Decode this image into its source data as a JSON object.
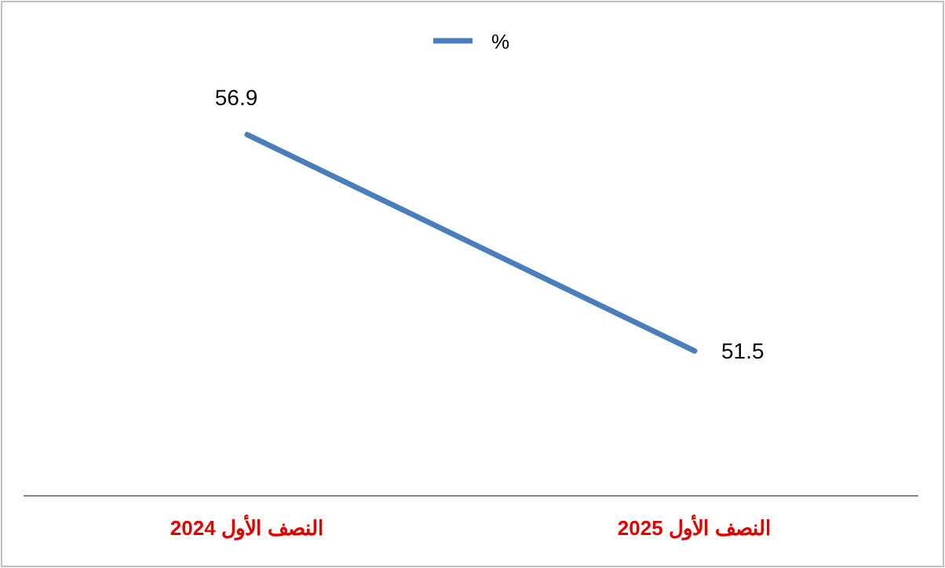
{
  "chart_data": {
    "type": "line",
    "categories": [
      "النصف الأول 2024",
      "النصف الأول 2025"
    ],
    "series": [
      {
        "name": "%",
        "color": "#4a7ebb",
        "values": [
          56.9,
          51.5
        ]
      }
    ],
    "data_labels": true,
    "legend": "top",
    "marker": "none",
    "line_style": "solid"
  }
}
